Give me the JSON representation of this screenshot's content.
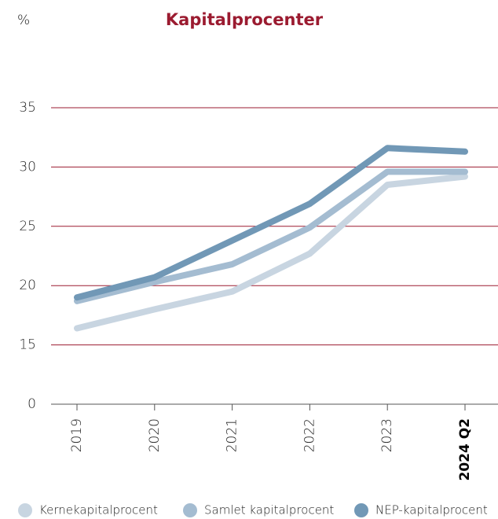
{
  "chart_data": {
    "type": "line",
    "title": "Kapitalprocenter",
    "y_label": "%",
    "categories": [
      "2019",
      "2020",
      "2021",
      "2022",
      "2023",
      "2024 Q2"
    ],
    "series": [
      {
        "name": "Kernekapitalprocent",
        "color": "#c8d5e1",
        "values": [
          16.4,
          18.0,
          19.5,
          22.7,
          28.5,
          29.2
        ]
      },
      {
        "name": "Samlet kapitalprocent",
        "color": "#a4bcd1",
        "values": [
          18.7,
          20.3,
          21.8,
          24.9,
          29.6,
          29.6
        ]
      },
      {
        "name": "NEP-kapitalprocent",
        "color": "#7198b6",
        "values": [
          19.0,
          20.7,
          23.8,
          26.9,
          31.6,
          31.3
        ]
      }
    ],
    "ylim": [
      0,
      35
    ],
    "yticks": [
      0,
      15,
      20,
      25,
      30,
      35
    ],
    "grid": true,
    "legend": "bottom"
  }
}
